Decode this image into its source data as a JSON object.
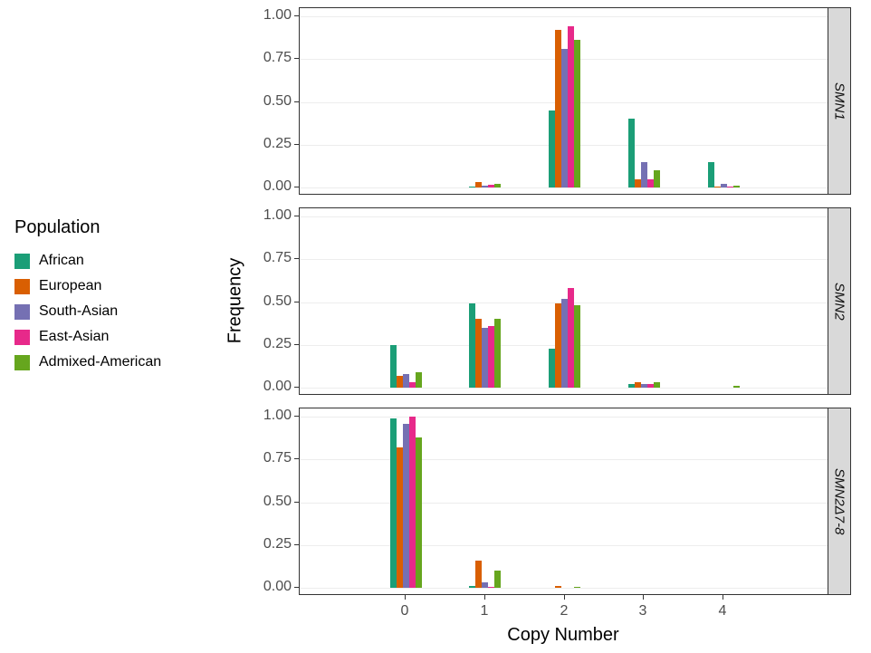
{
  "legend": {
    "title": "Population",
    "items": [
      {
        "label": "African",
        "color": "#1B9E77"
      },
      {
        "label": "European",
        "color": "#D95F02"
      },
      {
        "label": "South-Asian",
        "color": "#7570B3"
      },
      {
        "label": "East-Asian",
        "color": "#E7298A"
      },
      {
        "label": "Admixed-American",
        "color": "#66A61E"
      }
    ]
  },
  "chart_data": {
    "type": "bar",
    "title": "",
    "xlabel": "Copy Number",
    "ylabel": "Frequency",
    "x_ticks": [
      "0",
      "1",
      "2",
      "3",
      "4"
    ],
    "y_ticks": [
      "1.00",
      "0.75",
      "0.50",
      "0.25",
      "0.00"
    ],
    "ylim": [
      0,
      1.0
    ],
    "grid": true,
    "legend_position": "left",
    "facet_strip_position": "right",
    "facets": [
      {
        "label": "SMN1",
        "series": [
          {
            "name": "African",
            "values": [
              0,
              0.005,
              0.45,
              0.4,
              0.15
            ]
          },
          {
            "name": "European",
            "values": [
              0,
              0.03,
              0.92,
              0.05,
              0.005
            ]
          },
          {
            "name": "South-Asian",
            "values": [
              0,
              0.01,
              0.81,
              0.15,
              0.02
            ]
          },
          {
            "name": "East-Asian",
            "values": [
              0,
              0.015,
              0.94,
              0.05,
              0.002
            ]
          },
          {
            "name": "Admixed-American",
            "values": [
              0,
              0.02,
              0.86,
              0.1,
              0.01
            ]
          }
        ]
      },
      {
        "label": "SMN2",
        "series": [
          {
            "name": "African",
            "values": [
              0.25,
              0.49,
              0.23,
              0.02,
              0
            ]
          },
          {
            "name": "European",
            "values": [
              0.07,
              0.4,
              0.49,
              0.03,
              0
            ]
          },
          {
            "name": "South-Asian",
            "values": [
              0.08,
              0.35,
              0.52,
              0.02,
              0
            ]
          },
          {
            "name": "East-Asian",
            "values": [
              0.03,
              0.36,
              0.58,
              0.02,
              0
            ]
          },
          {
            "name": "Admixed-American",
            "values": [
              0.09,
              0.4,
              0.48,
              0.03,
              0.01
            ]
          }
        ]
      },
      {
        "label": "SMN2Δ7-8",
        "series": [
          {
            "name": "African",
            "values": [
              0.99,
              0.01,
              0,
              0,
              0
            ]
          },
          {
            "name": "European",
            "values": [
              0.82,
              0.16,
              0.01,
              0,
              0
            ]
          },
          {
            "name": "South-Asian",
            "values": [
              0.96,
              0.03,
              0,
              0,
              0
            ]
          },
          {
            "name": "East-Asian",
            "values": [
              1.0,
              0.003,
              0,
              0,
              0
            ]
          },
          {
            "name": "Admixed-American",
            "values": [
              0.88,
              0.1,
              0.005,
              0,
              0
            ]
          }
        ]
      }
    ]
  }
}
